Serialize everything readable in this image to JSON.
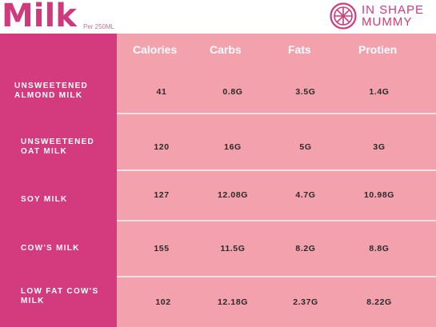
{
  "header": {
    "title": "Milk",
    "subtitle": "Per 250ML",
    "logo_line1": "IN SHAPE",
    "logo_line2": "MUMMY"
  },
  "columns": [
    "Calories",
    "Carbs",
    "Fats",
    "Protien"
  ],
  "rows": [
    {
      "label_lines": [
        "UNSWEETENED",
        "ALMOND MILK"
      ],
      "values": [
        "41",
        "0.8G",
        "3.5G",
        "1.4G"
      ]
    },
    {
      "label_lines": [
        "UNSWEETENED",
        "OAT MILK"
      ],
      "values": [
        "120",
        "16G",
        "5G",
        "3G"
      ]
    },
    {
      "label_lines": [
        "SOY MILK"
      ],
      "values": [
        "127",
        "12.08G",
        "4.7G",
        "10.98G"
      ]
    },
    {
      "label_lines": [
        "COW'S MILK"
      ],
      "values": [
        "155",
        "11.5G",
        "8.2G",
        "8.8G"
      ]
    },
    {
      "label_lines": [
        "LOW FAT COW'S",
        "MILK"
      ],
      "values": [
        "102",
        "12.18G",
        "2.37G",
        "8.22G"
      ]
    }
  ],
  "colors": {
    "accent": "#d33b7e",
    "table_bg": "#f3a1ac",
    "divider": "#fbe1e5"
  },
  "logo_icon": "orange-slice-icon"
}
